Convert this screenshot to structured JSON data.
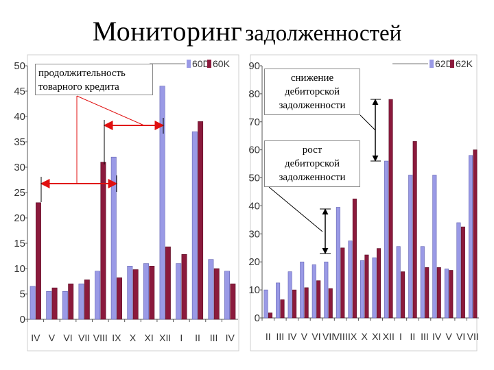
{
  "title_part1": "Мониторинг",
  "title_part2": "задолженностей",
  "annotations": {
    "credit_duration": [
      "продолжительность",
      "товарного кредита"
    ],
    "receivables_decrease": [
      "снижение",
      "дебиторской",
      "задолженности"
    ],
    "receivables_increase": [
      "рост",
      "дебиторской",
      "задолженности"
    ]
  },
  "colors": {
    "series1": "#9a9ae6",
    "series2": "#8b1a3c",
    "arrow": "#e01010"
  },
  "chart_data": [
    {
      "type": "bar",
      "categories": [
        "IV",
        "V",
        "VI",
        "VII",
        "VIII",
        "IX",
        "X",
        "XI",
        "XII",
        "I",
        "II",
        "III",
        "IV"
      ],
      "series": [
        {
          "name": "60D",
          "values": [
            6.5,
            5.5,
            5.5,
            7,
            9.5,
            32,
            10.5,
            11,
            46,
            11,
            37,
            11.8,
            9.5
          ]
        },
        {
          "name": "60K",
          "values": [
            23,
            6.2,
            7,
            7.8,
            31,
            8.2,
            9.8,
            10.5,
            14.3,
            12.8,
            39,
            10,
            7
          ]
        }
      ],
      "yticks": [
        0,
        5,
        10,
        15,
        20,
        25,
        30,
        35,
        40,
        45,
        50
      ],
      "ylim": [
        0,
        50
      ],
      "grid": false,
      "legend": "top-right"
    },
    {
      "type": "bar",
      "categories": [
        "II",
        "III",
        "IV",
        "V",
        "VI",
        "VII",
        "VIII",
        "IX",
        "X",
        "XI",
        "XII",
        "I",
        "II",
        "III",
        "IV",
        "V",
        "VI",
        "VII"
      ],
      "series": [
        {
          "name": "62D",
          "values": [
            10,
            12.5,
            16.5,
            20,
            19,
            20,
            39.5,
            27.5,
            20.5,
            21.5,
            56,
            25.5,
            51,
            25.5,
            51,
            17.5,
            34,
            58
          ]
        },
        {
          "name": "62K",
          "values": [
            1.8,
            6.5,
            10,
            10.8,
            13.3,
            10.5,
            25,
            42.5,
            22.5,
            24.8,
            78,
            16.5,
            63,
            18,
            18,
            17,
            32.5,
            60
          ]
        }
      ],
      "yticks": [
        0,
        10,
        20,
        30,
        40,
        50,
        60,
        70,
        80,
        90
      ],
      "ylim": [
        0,
        90
      ],
      "grid": false,
      "legend": "top-right"
    }
  ]
}
